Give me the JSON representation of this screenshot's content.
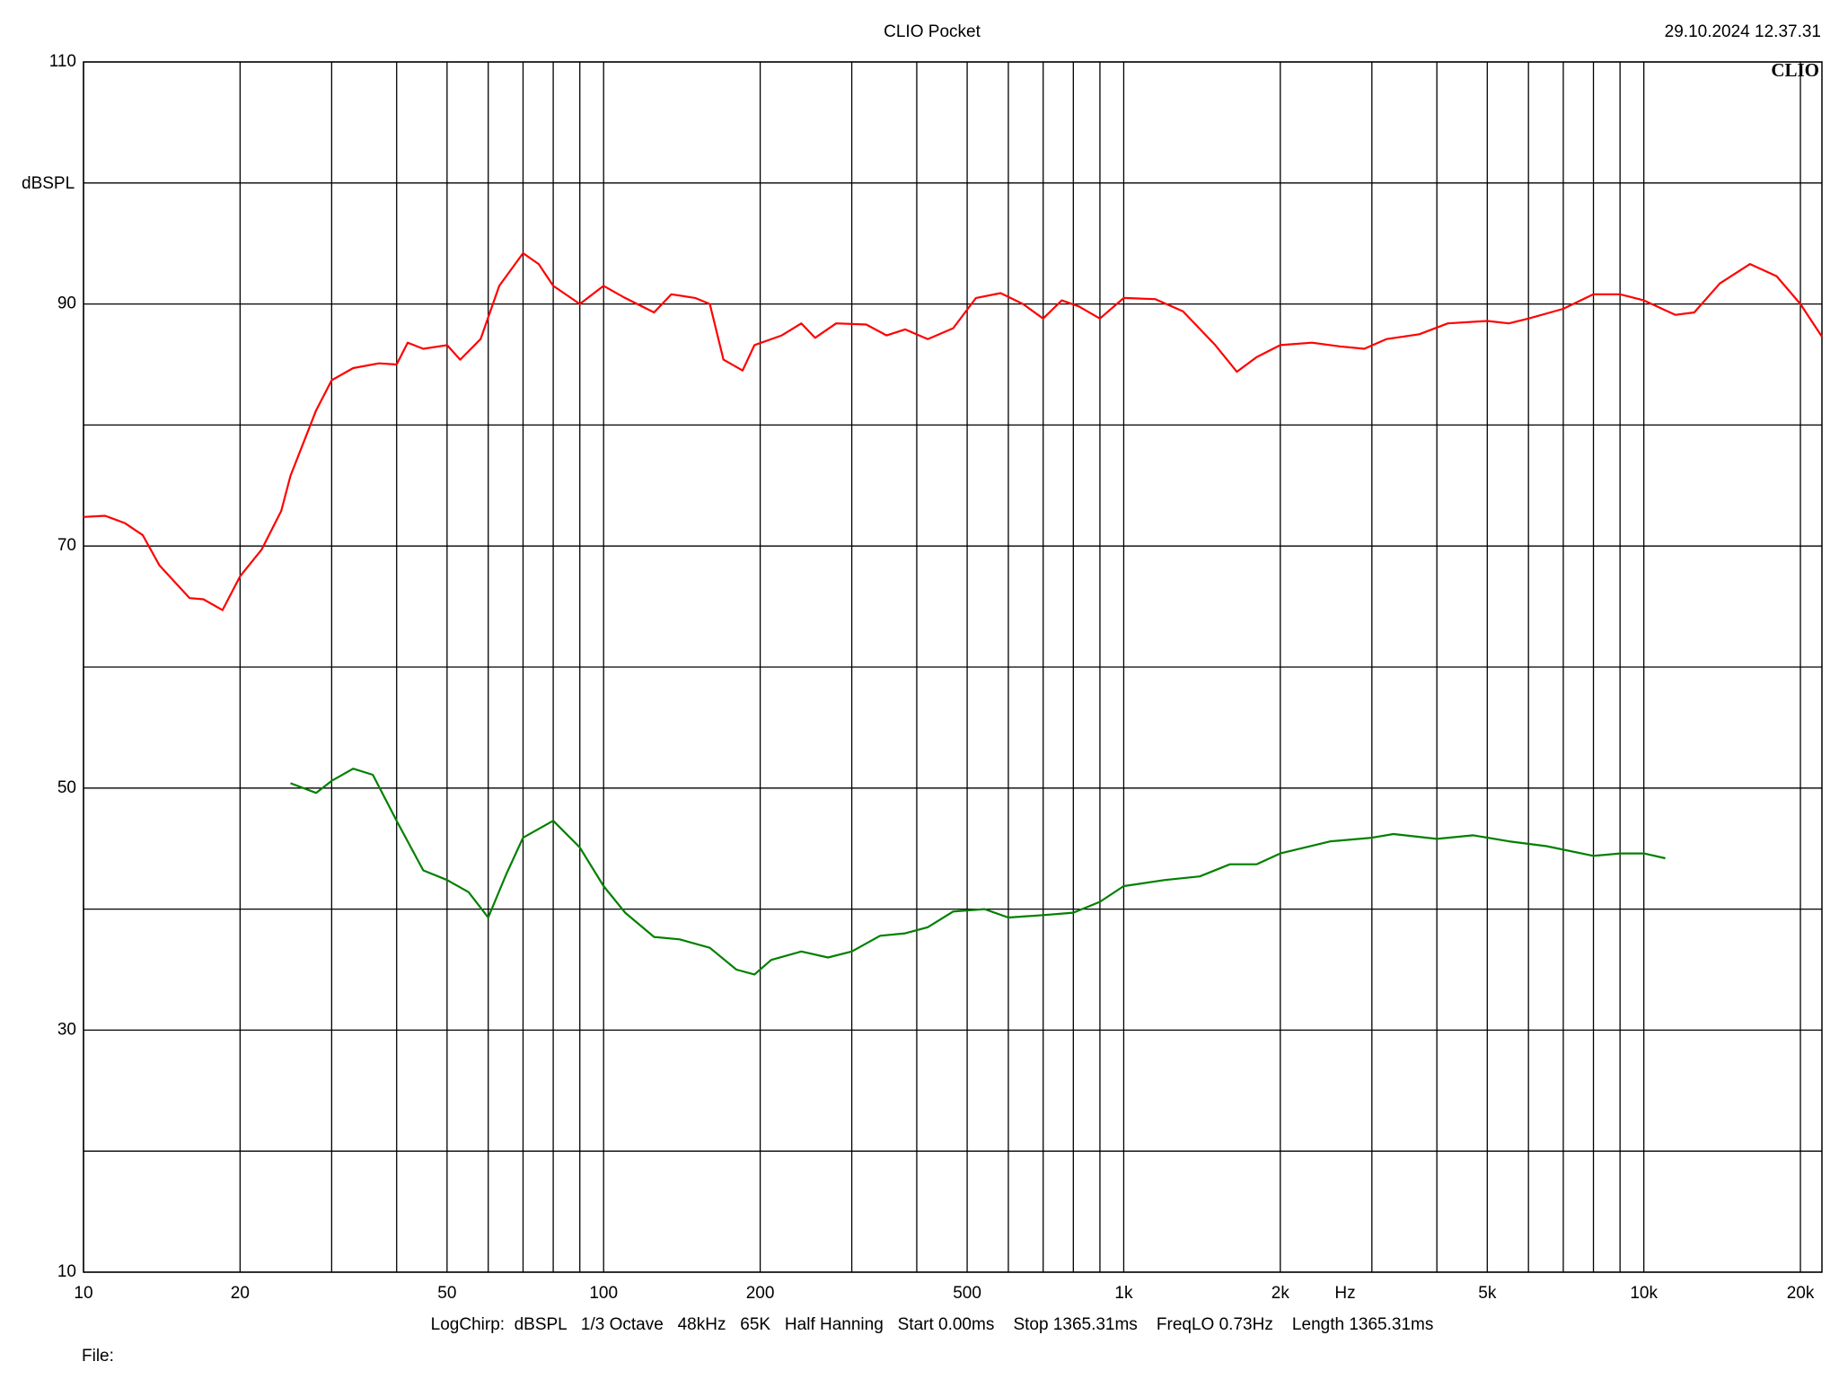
{
  "chart_data": {
    "type": "line",
    "title": "CLIO Pocket",
    "timestamp": "29.10.2024 12.37.31",
    "logo": "CLIO",
    "y_label": "dBSPL",
    "x_label": "Hz",
    "footer": "LogChirp:  dBSPL   1/3 Octave   48kHz   65K   Half Hanning   Start 0.00ms    Stop 1365.31ms    FreqLO 0.73Hz    Length 1365.31ms",
    "file_label": "File:",
    "x_log": true,
    "xlim": [
      10,
      22000
    ],
    "ylim": [
      10,
      110
    ],
    "xticks": [
      10,
      20,
      50,
      100,
      200,
      500,
      {
        "value": 1000,
        "label": "1k"
      },
      {
        "value": 2000,
        "label": "2k"
      },
      {
        "value": 5000,
        "label": "5k"
      },
      {
        "value": 10000,
        "label": "10k"
      },
      {
        "value": 20000,
        "label": "20k"
      }
    ],
    "xgrid": [
      30,
      40,
      60,
      70,
      80,
      90,
      300,
      400,
      600,
      700,
      800,
      900,
      3000,
      4000,
      6000,
      7000,
      8000,
      9000
    ],
    "yticks": [
      10,
      30,
      50,
      70,
      90,
      110
    ],
    "ygrid": [
      20,
      40,
      60,
      80,
      100
    ],
    "grid": true,
    "series": [
      {
        "color": "#ff0000",
        "x": [
          10,
          11,
          12,
          13,
          14,
          16,
          17,
          18.5,
          20,
          22,
          24,
          25,
          28,
          30,
          33,
          37,
          40,
          42,
          45,
          50,
          53,
          58,
          63,
          70,
          75,
          80,
          90,
          100,
          110,
          125,
          135,
          150,
          160,
          170,
          185,
          195,
          220,
          240,
          255,
          280,
          320,
          350,
          380,
          420,
          470,
          520,
          580,
          640,
          700,
          760,
          820,
          900,
          1000,
          1150,
          1300,
          1500,
          1650,
          1800,
          2000,
          2300,
          2600,
          2900,
          3200,
          3700,
          4200,
          5000,
          5500,
          6000,
          7000,
          8000,
          9000,
          10000,
          11500,
          12500,
          14000,
          16000,
          18000,
          20000,
          22000
        ],
        "values": [
          72.4,
          72.5,
          71.9,
          70.9,
          68.4,
          65.7,
          65.6,
          64.7,
          67.5,
          69.7,
          72.9,
          75.8,
          81.2,
          83.7,
          84.7,
          85.1,
          85.0,
          86.8,
          86.3,
          86.6,
          85.4,
          87.1,
          91.5,
          94.2,
          93.3,
          91.5,
          90.0,
          91.5,
          90.5,
          89.3,
          90.8,
          90.5,
          90.0,
          85.4,
          84.5,
          86.6,
          87.4,
          88.4,
          87.2,
          88.4,
          88.3,
          87.4,
          87.9,
          87.1,
          88.0,
          90.5,
          90.9,
          90.0,
          88.8,
          90.3,
          89.8,
          88.8,
          90.5,
          90.4,
          89.4,
          86.6,
          84.4,
          85.6,
          86.6,
          86.8,
          86.5,
          86.3,
          87.1,
          87.5,
          88.4,
          88.6,
          88.4,
          88.8,
          89.6,
          90.8,
          90.8,
          90.3,
          89.1,
          89.3,
          91.7,
          93.3,
          92.3,
          90.0,
          87.3
        ]
      },
      {
        "color": "#008000",
        "x": [
          25,
          28,
          30,
          33,
          36,
          40,
          45,
          50,
          55,
          60,
          65,
          70,
          80,
          90,
          100,
          110,
          125,
          140,
          160,
          180,
          195,
          210,
          240,
          270,
          300,
          340,
          380,
          420,
          470,
          540,
          600,
          700,
          800,
          900,
          1000,
          1200,
          1400,
          1600,
          1800,
          2000,
          2500,
          3000,
          3300,
          4000,
          4700,
          5500,
          6500,
          8000,
          9000,
          10000,
          11000
        ],
        "values": [
          50.4,
          49.6,
          50.6,
          51.6,
          51.1,
          47.3,
          43.2,
          42.4,
          41.4,
          39.3,
          42.9,
          45.9,
          47.3,
          45.1,
          41.9,
          39.7,
          37.7,
          37.5,
          36.8,
          35.0,
          34.6,
          35.8,
          36.5,
          36.0,
          36.5,
          37.8,
          38.0,
          38.5,
          39.8,
          40.0,
          39.3,
          39.5,
          39.7,
          40.6,
          41.9,
          42.4,
          42.7,
          43.7,
          43.7,
          44.6,
          45.6,
          45.9,
          46.2,
          45.8,
          46.1,
          45.6,
          45.2,
          44.4,
          44.6,
          44.6,
          44.2
        ]
      }
    ]
  }
}
